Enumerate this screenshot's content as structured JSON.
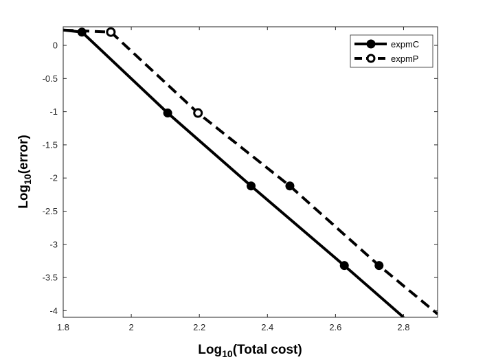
{
  "chart_data": {
    "type": "line",
    "xlabel": {
      "base": "Log",
      "sub": "10",
      "rest": "(Total cost)"
    },
    "ylabel": {
      "base": "Log",
      "sub": "10",
      "rest": "(error)"
    },
    "xlim": [
      1.8,
      2.9
    ],
    "ylim": [
      -4.1,
      0.28
    ],
    "xticks": [
      1.8,
      2,
      2.2,
      2.4,
      2.6,
      2.8
    ],
    "xtick_labels": [
      "1.8",
      "2",
      "2.2",
      "2.4",
      "2.6",
      "2.8"
    ],
    "yticks": [
      0,
      -0.5,
      -1,
      -1.5,
      -2,
      -2.5,
      -3,
      -3.5,
      -4
    ],
    "ytick_labels": [
      "0",
      "-0.5",
      "-1",
      "-1.5",
      "-2",
      "-2.5",
      "-3",
      "-3.5",
      "-4"
    ],
    "grid": false,
    "legend": "top-right",
    "series": [
      {
        "name": "expmC",
        "style": "solid",
        "marker": "filled-circle",
        "line": [
          [
            1.8,
            0.23
          ],
          [
            1.855,
            0.2
          ],
          [
            2.107,
            -1.02
          ],
          [
            2.352,
            -2.12
          ],
          [
            2.626,
            -3.32
          ],
          [
            2.8,
            -4.1
          ]
        ],
        "points": [
          [
            1.855,
            0.2
          ],
          [
            2.107,
            -1.02
          ],
          [
            2.352,
            -2.12
          ],
          [
            2.626,
            -3.32
          ]
        ]
      },
      {
        "name": "expmP",
        "style": "dashed",
        "marker": "mixed",
        "line": [
          [
            1.8,
            0.23
          ],
          [
            1.94,
            0.2
          ],
          [
            2.196,
            -1.02
          ],
          [
            2.466,
            -2.12
          ],
          [
            2.728,
            -3.32
          ],
          [
            2.9,
            -4.05
          ]
        ],
        "points": [
          [
            1.94,
            0.2,
            "open"
          ],
          [
            2.196,
            -1.02,
            "open"
          ],
          [
            2.466,
            -2.12,
            "filled"
          ],
          [
            2.728,
            -3.32,
            "filled"
          ]
        ]
      }
    ]
  }
}
